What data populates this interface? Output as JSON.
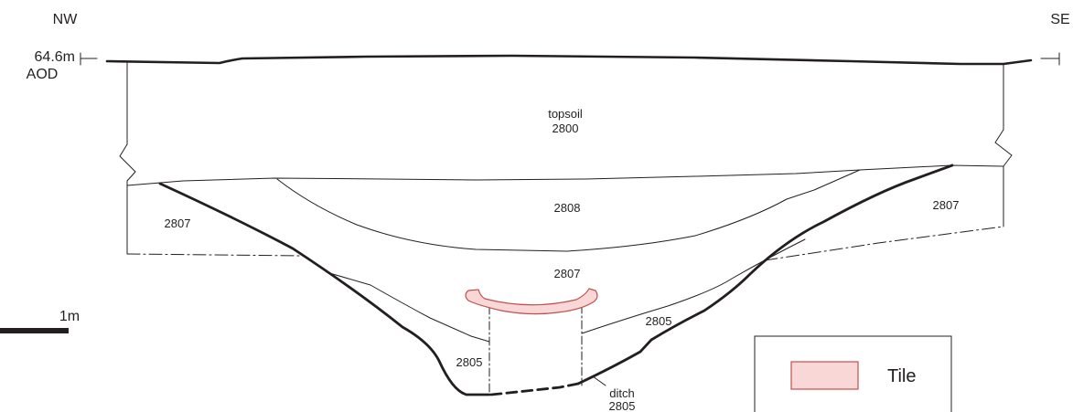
{
  "orientation": {
    "left": "NW",
    "right": "SE"
  },
  "datum": {
    "height": "64.6m",
    "unit": "AOD"
  },
  "scale_bar": {
    "label": "1m"
  },
  "layers": {
    "topsoil": {
      "name": "topsoil",
      "id": "2800"
    },
    "upper_fill": {
      "id": "2808"
    },
    "fill_left": {
      "id": "2807"
    },
    "fill_right": {
      "id": "2807"
    },
    "fill_center": {
      "id": "2807"
    },
    "basal_fill_left": {
      "id": "2805"
    },
    "basal_fill_right": {
      "id": "2805"
    },
    "cut": {
      "name": "ditch",
      "id": "2805"
    }
  },
  "legend": {
    "items": [
      {
        "label": "Tile",
        "swatch_fill": "#f9d7d7",
        "swatch_stroke": "#c0504d"
      }
    ]
  },
  "colors": {
    "line": "#231f20",
    "tile_fill": "#f9d7d7",
    "tile_stroke": "#c0504d"
  }
}
